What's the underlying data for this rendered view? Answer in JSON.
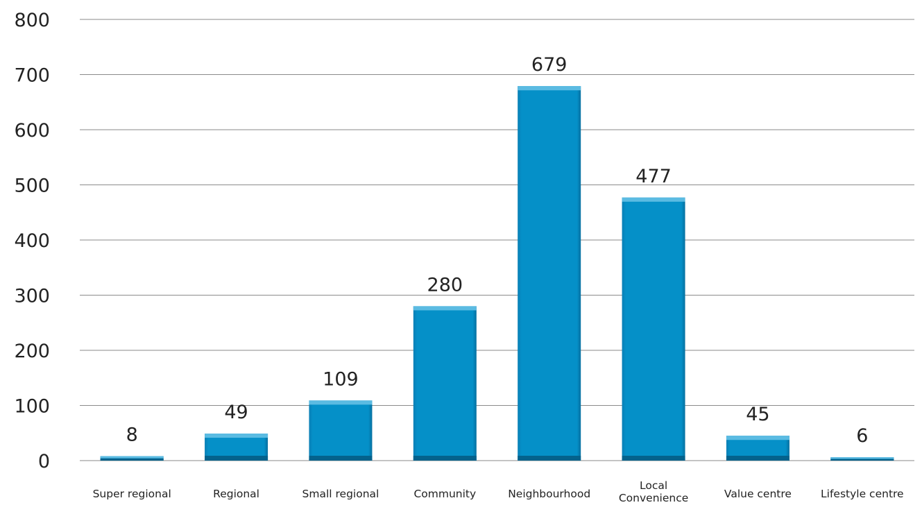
{
  "chart_data": {
    "type": "bar",
    "categories": [
      "Super regional",
      "Regional",
      "Small regional",
      "Community",
      "Neighbourhood",
      "Local Convenience",
      "Value centre",
      "Lifestyle centre"
    ],
    "category_lines": [
      [
        "Super regional"
      ],
      [
        "Regional"
      ],
      [
        "Small regional"
      ],
      [
        "Community"
      ],
      [
        "Neighbourhood"
      ],
      [
        "Local",
        "Convenience"
      ],
      [
        "Value centre"
      ],
      [
        "Lifestyle centre"
      ]
    ],
    "values": [
      8,
      49,
      109,
      280,
      679,
      477,
      45,
      6
    ],
    "data_labels": [
      "8",
      "49",
      "109",
      "280",
      "679",
      "477",
      "45",
      "6"
    ],
    "yticks": [
      "0",
      "100",
      "200",
      "300",
      "400",
      "500",
      "600",
      "700",
      "800"
    ],
    "ylim": [
      0,
      800
    ],
    "grid": true,
    "legend": "none",
    "bar_color": "#0590c8",
    "bar_top_color": "#5bbbe2",
    "bar_bottom_color": "#04628c",
    "grid_color": "#8a8a8a"
  }
}
